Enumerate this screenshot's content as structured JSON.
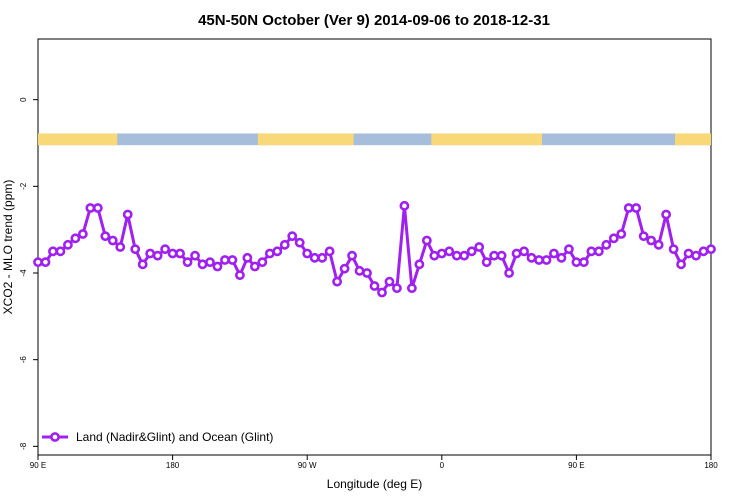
{
  "chart_data": {
    "type": "line",
    "title": "45N-50N October (Ver 9)   2014-09-06 to 2018-12-31",
    "xlabel": "Longitude (deg E)",
    "ylabel": "XCO2 - MLO trend (ppm)",
    "xlim": [
      90,
      540
    ],
    "ylim": [
      -8.2,
      1.4
    ],
    "x_ticks": [
      {
        "value": 90,
        "label": "90 E"
      },
      {
        "value": 180,
        "label": "180"
      },
      {
        "value": 270,
        "label": "90 W"
      },
      {
        "value": 360,
        "label": "0"
      },
      {
        "value": 450,
        "label": "90 E"
      },
      {
        "value": 540,
        "label": "180"
      }
    ],
    "y_ticks": [
      {
        "value": 0,
        "label": "0"
      },
      {
        "value": -2,
        "label": "-2"
      },
      {
        "value": -4,
        "label": "-4"
      },
      {
        "value": -6,
        "label": "-6"
      },
      {
        "value": -8,
        "label": "-8"
      }
    ],
    "land_ocean_strip": {
      "y_range": [
        -1.05,
        -0.78
      ],
      "land_color": "#F9D877",
      "ocean_color": "#A6BDDB",
      "land_segments": [
        [
          90,
          143
        ],
        [
          237,
          301
        ],
        [
          353,
          427
        ],
        [
          516,
          540
        ]
      ]
    },
    "series": [
      {
        "name": "Land (Nadir&Glint) and Ocean (Glint)",
        "color": "#A020F0",
        "x": [
          90,
          95,
          100,
          105,
          110,
          115,
          120,
          125,
          130,
          135,
          140,
          145,
          150,
          155,
          160,
          165,
          170,
          175,
          180,
          185,
          190,
          195,
          200,
          205,
          210,
          215,
          220,
          225,
          230,
          235,
          240,
          245,
          250,
          255,
          260,
          265,
          270,
          275,
          280,
          285,
          290,
          295,
          300,
          305,
          310,
          315,
          320,
          325,
          330,
          335,
          340,
          345,
          350,
          355,
          360,
          365,
          370,
          375,
          380,
          385,
          390,
          395,
          400,
          405,
          410,
          415,
          420,
          425,
          430,
          435,
          440,
          445,
          450,
          455,
          460,
          465,
          470,
          475,
          480,
          485,
          490,
          495,
          500,
          505,
          510,
          515,
          520,
          525,
          530,
          535,
          540
        ],
        "y": [
          -3.75,
          -3.75,
          -3.5,
          -3.5,
          -3.35,
          -3.2,
          -3.1,
          -2.5,
          -2.5,
          -3.15,
          -3.25,
          -3.4,
          -2.65,
          -3.45,
          -3.8,
          -3.55,
          -3.6,
          -3.45,
          -3.55,
          -3.55,
          -3.75,
          -3.6,
          -3.8,
          -3.75,
          -3.85,
          -3.7,
          -3.7,
          -4.05,
          -3.65,
          -3.85,
          -3.75,
          -3.55,
          -3.5,
          -3.35,
          -3.15,
          -3.3,
          -3.55,
          -3.65,
          -3.65,
          -3.5,
          -4.2,
          -3.9,
          -3.6,
          -3.95,
          -4.0,
          -4.3,
          -4.45,
          -4.2,
          -4.35,
          -2.45,
          -4.35,
          -3.8,
          -3.25,
          -3.6,
          -3.55,
          -3.5,
          -3.6,
          -3.6,
          -3.5,
          -3.4,
          -3.75,
          -3.6,
          -3.6,
          -4.0,
          -3.55,
          -3.5,
          -3.65,
          -3.7,
          -3.7,
          -3.55,
          -3.65,
          -3.45,
          -3.75,
          -3.75,
          -3.5,
          -3.5,
          -3.35,
          -3.2,
          -3.1,
          -2.5,
          -2.5,
          -3.15,
          -3.25,
          -3.35,
          -2.65,
          -3.45,
          -3.8,
          -3.55,
          -3.6,
          -3.5,
          -3.45
        ]
      }
    ],
    "legend": {
      "placement": "bottom-left"
    },
    "grid": false
  }
}
